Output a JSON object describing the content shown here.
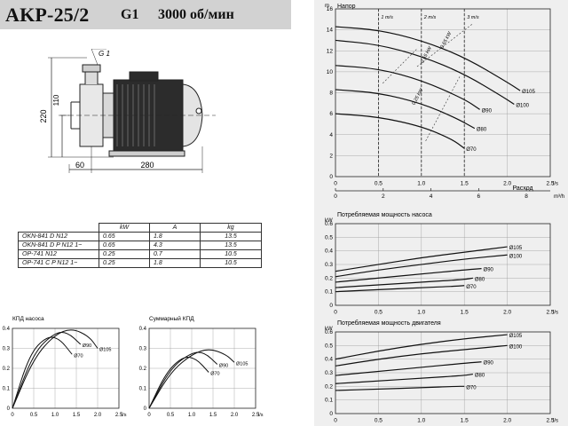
{
  "header": {
    "model": "AKP-25/2",
    "connection": "G1",
    "speed": "3000 об/мин"
  },
  "drawing": {
    "dim_g": "G 1",
    "dim_220": "220",
    "dim_110": "110",
    "dim_60": "60",
    "dim_280": "280"
  },
  "table": {
    "columns": [
      "kW",
      "A",
      "kg"
    ],
    "rows": [
      [
        "OKN-841 D N12",
        "0.65",
        "1.8",
        "13.5"
      ],
      [
        "OKN-841 D P N12 1~",
        "0.65",
        "4.3",
        "13.5"
      ],
      [
        "OP-741 N12",
        "0.25",
        "0.7",
        "10.5"
      ],
      [
        "OP-741 C P N12 1~",
        "0.25",
        "1.8",
        "10.5"
      ]
    ]
  },
  "chart_data": [
    {
      "type": "line",
      "title": "Напор",
      "ylabel": "m",
      "xlabel": "Расход",
      "x_unit": "l/s",
      "x2_unit": "m³/h",
      "xlim": [
        0,
        2.5
      ],
      "ylim": [
        0,
        16
      ],
      "xticks": [
        "0",
        "0.5",
        "1.0",
        "1.5",
        "2.0",
        "2.5"
      ],
      "yticks": [
        "0",
        "2",
        "4",
        "6",
        "8",
        "10",
        "12",
        "14",
        "16"
      ],
      "x2ticks": [
        "0",
        "2",
        "4",
        "6",
        "8"
      ],
      "velocity_lines": [
        {
          "label": "1 m/s",
          "x": 0.5
        },
        {
          "label": "2 m/s",
          "x": 1.0
        },
        {
          "label": "3 m/s",
          "x": 1.5
        }
      ],
      "efficiency_labels": [
        "0.55 kW",
        "0.65 kW",
        "0.25 kW"
      ],
      "series": [
        {
          "name": "Ø105",
          "x": [
            0,
            0.5,
            1.0,
            1.5,
            2.0,
            2.15
          ],
          "y": [
            14.3,
            14.0,
            13.0,
            11.4,
            9.0,
            8.2
          ]
        },
        {
          "name": "Ø100",
          "x": [
            0,
            0.5,
            1.0,
            1.5,
            1.95,
            2.08
          ],
          "y": [
            13.0,
            12.6,
            11.5,
            9.8,
            7.6,
            6.9
          ]
        },
        {
          "name": "Ø90",
          "x": [
            0,
            0.5,
            1.0,
            1.5,
            1.68
          ],
          "y": [
            10.6,
            10.3,
            9.2,
            7.4,
            6.4
          ]
        },
        {
          "name": "Ø80",
          "x": [
            0,
            0.5,
            1.0,
            1.4,
            1.62
          ],
          "y": [
            8.3,
            8.0,
            7.0,
            5.6,
            4.6
          ]
        },
        {
          "name": "Ø70",
          "x": [
            0,
            0.5,
            1.0,
            1.35,
            1.5
          ],
          "y": [
            6.0,
            5.7,
            4.8,
            3.6,
            2.7
          ]
        }
      ]
    },
    {
      "type": "line",
      "title": "Потребляемая мощность насоса",
      "ylabel": "kW",
      "x_unit": "l/s",
      "xlim": [
        0,
        2.5
      ],
      "ylim": [
        0,
        0.6
      ],
      "xticks": [
        "0",
        "0.5",
        "1.0",
        "1.5",
        "2.0",
        "2.5"
      ],
      "yticks": [
        "0",
        "0.1",
        "0.2",
        "0.3",
        "0.4",
        "0.5",
        "0.6"
      ],
      "series": [
        {
          "name": "Ø105",
          "x": [
            0,
            0.5,
            1.0,
            1.5,
            2.0
          ],
          "y": [
            0.25,
            0.3,
            0.35,
            0.39,
            0.43
          ]
        },
        {
          "name": "Ø100",
          "x": [
            0,
            0.5,
            1.0,
            1.5,
            2.0
          ],
          "y": [
            0.21,
            0.26,
            0.3,
            0.34,
            0.37
          ]
        },
        {
          "name": "Ø90",
          "x": [
            0,
            0.5,
            1.0,
            1.5,
            1.7
          ],
          "y": [
            0.17,
            0.2,
            0.23,
            0.26,
            0.27
          ]
        },
        {
          "name": "Ø80",
          "x": [
            0,
            0.5,
            1.0,
            1.5,
            1.6
          ],
          "y": [
            0.13,
            0.15,
            0.17,
            0.19,
            0.2
          ]
        },
        {
          "name": "Ø70",
          "x": [
            0,
            0.5,
            1.0,
            1.4,
            1.5
          ],
          "y": [
            0.1,
            0.115,
            0.13,
            0.14,
            0.145
          ]
        }
      ]
    },
    {
      "type": "line",
      "title": "Потребляемая мощность двигателя",
      "ylabel": "kW",
      "x_unit": "l/s",
      "xlim": [
        0,
        2.5
      ],
      "ylim": [
        0,
        0.6
      ],
      "xticks": [
        "0",
        "0.5",
        "1.0",
        "1.5",
        "2.0",
        "2.5"
      ],
      "yticks": [
        "0",
        "0.1",
        "0.2",
        "0.3",
        "0.4",
        "0.5",
        "0.6"
      ],
      "series": [
        {
          "name": "Ø105",
          "x": [
            0,
            0.5,
            1.0,
            1.5,
            2.0
          ],
          "y": [
            0.4,
            0.46,
            0.51,
            0.55,
            0.58
          ]
        },
        {
          "name": "Ø100",
          "x": [
            0,
            0.5,
            1.0,
            1.5,
            2.0
          ],
          "y": [
            0.35,
            0.4,
            0.44,
            0.47,
            0.5
          ]
        },
        {
          "name": "Ø90",
          "x": [
            0,
            0.5,
            1.0,
            1.5,
            1.7
          ],
          "y": [
            0.28,
            0.31,
            0.34,
            0.37,
            0.38
          ]
        },
        {
          "name": "Ø80",
          "x": [
            0,
            0.5,
            1.0,
            1.5,
            1.6
          ],
          "y": [
            0.22,
            0.24,
            0.26,
            0.28,
            0.29
          ]
        },
        {
          "name": "Ø70",
          "x": [
            0,
            0.5,
            1.0,
            1.4,
            1.5
          ],
          "y": [
            0.17,
            0.18,
            0.19,
            0.2,
            0.2
          ]
        }
      ]
    },
    {
      "type": "line",
      "title": "КПД насоса",
      "x_unit": "l/s",
      "xlim": [
        0,
        2.5
      ],
      "ylim": [
        0,
        0.4
      ],
      "xticks": [
        "0",
        "0.5",
        "1.0",
        "1.5",
        "2.0",
        "2.5"
      ],
      "yticks": [
        "0",
        "0.1",
        "0.2",
        "0.3",
        "0.4"
      ],
      "series": [
        {
          "name": "Ø105",
          "x": [
            0,
            0.5,
            1.0,
            1.4,
            1.8,
            2.0
          ],
          "y": [
            0,
            0.25,
            0.37,
            0.4,
            0.36,
            0.3
          ]
        },
        {
          "name": "Ø90",
          "x": [
            0,
            0.5,
            1.0,
            1.3,
            1.6
          ],
          "y": [
            0,
            0.28,
            0.38,
            0.38,
            0.32
          ]
        },
        {
          "name": "Ø70",
          "x": [
            0,
            0.4,
            0.8,
            1.1,
            1.4
          ],
          "y": [
            0,
            0.27,
            0.36,
            0.35,
            0.27
          ]
        }
      ]
    },
    {
      "type": "line",
      "title": "Суммарный КПД",
      "x_unit": "l/s",
      "xlim": [
        0,
        2.5
      ],
      "ylim": [
        0,
        0.4
      ],
      "xticks": [
        "0",
        "0.5",
        "1.0",
        "1.5",
        "2.0",
        "2.5"
      ],
      "yticks": [
        "0",
        "0.1",
        "0.2",
        "0.3",
        "0.4"
      ],
      "series": [
        {
          "name": "Ø105",
          "x": [
            0,
            0.5,
            1.0,
            1.4,
            1.8,
            2.0
          ],
          "y": [
            0,
            0.18,
            0.27,
            0.3,
            0.27,
            0.23
          ]
        },
        {
          "name": "Ø90",
          "x": [
            0,
            0.5,
            1.0,
            1.3,
            1.6
          ],
          "y": [
            0,
            0.2,
            0.28,
            0.28,
            0.22
          ]
        },
        {
          "name": "Ø70",
          "x": [
            0,
            0.4,
            0.8,
            1.1,
            1.4
          ],
          "y": [
            0,
            0.18,
            0.26,
            0.25,
            0.18
          ]
        }
      ]
    }
  ]
}
